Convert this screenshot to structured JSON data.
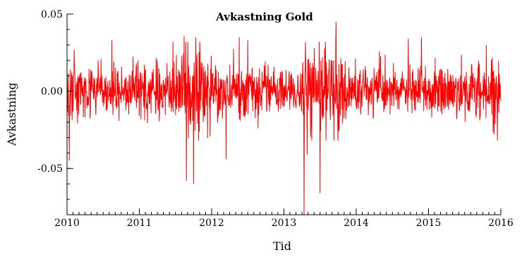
{
  "chart_data": {
    "type": "line",
    "title": "Avkastning Gold",
    "xlabel": "Tid",
    "ylabel": "Avkastning",
    "xlim": [
      2010,
      2016
    ],
    "ylim": [
      -0.08,
      0.05
    ],
    "x_ticks": [
      "2010",
      "2011",
      "2012",
      "2013",
      "2014",
      "2015",
      "2016"
    ],
    "y_ticks": [
      "0.05",
      "0.00",
      "-0.05"
    ],
    "y_tick_values": [
      0.05,
      0.0,
      -0.05
    ],
    "grid": false,
    "legend": "none",
    "series_color": "#ff0000",
    "notable_points": [
      {
        "x": 2010.03,
        "y": -0.045
      },
      {
        "x": 2011.65,
        "y": -0.058
      },
      {
        "x": 2011.75,
        "y": -0.06
      },
      {
        "x": 2012.2,
        "y": -0.044
      },
      {
        "x": 2013.28,
        "y": -0.08
      },
      {
        "x": 2013.32,
        "y": -0.041
      },
      {
        "x": 2013.5,
        "y": -0.066
      },
      {
        "x": 2013.72,
        "y": 0.045
      },
      {
        "x": 2010.1,
        "y": 0.027
      },
      {
        "x": 2010.62,
        "y": 0.033
      },
      {
        "x": 2011.62,
        "y": 0.036
      },
      {
        "x": 2011.78,
        "y": 0.035
      },
      {
        "x": 2012.38,
        "y": 0.035
      },
      {
        "x": 2012.5,
        "y": 0.033
      },
      {
        "x": 2013.42,
        "y": 0.028
      },
      {
        "x": 2014.32,
        "y": 0.026
      },
      {
        "x": 2014.72,
        "y": 0.034
      },
      {
        "x": 2014.9,
        "y": 0.035
      },
      {
        "x": 2015.8,
        "y": 0.03
      }
    ]
  }
}
